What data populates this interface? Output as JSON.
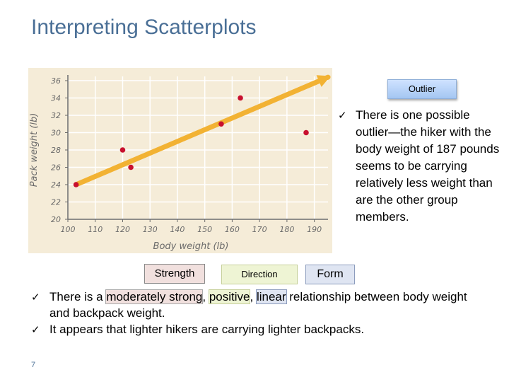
{
  "slide": {
    "title": "Interpreting Scatterplots",
    "page_number": "7"
  },
  "chart_data": {
    "type": "scatter",
    "xlabel": "Body weight (lb)",
    "ylabel": "Pack weight (lb)",
    "xlim": [
      100,
      195
    ],
    "ylim": [
      20,
      36
    ],
    "x_ticks": [
      100,
      110,
      120,
      130,
      140,
      150,
      160,
      170,
      180,
      190
    ],
    "y_ticks": [
      20,
      22,
      24,
      26,
      28,
      30,
      32,
      34,
      36
    ],
    "points": [
      {
        "x": 103,
        "y": 24
      },
      {
        "x": 120,
        "y": 28
      },
      {
        "x": 123,
        "y": 26
      },
      {
        "x": 156,
        "y": 31
      },
      {
        "x": 163,
        "y": 34
      },
      {
        "x": 187,
        "y": 30
      }
    ],
    "trend_line": {
      "x": [
        103,
        195
      ],
      "y": [
        24,
        36.4
      ]
    },
    "colors": {
      "points": "#c8102e",
      "trend_line": "#f2b233",
      "background": "#f5ecd8",
      "grid": "#ffffff"
    },
    "grid": true
  },
  "outlier_tag": "Outlier",
  "outlier_note": "There is one possible outlier—the hiker with the body weight of 187 pounds seems to be carrying relatively less weight than are the other group members.",
  "tags": {
    "strength": "Strength",
    "direction": "Direction",
    "form": "Form"
  },
  "bullets": {
    "b1_pre": "There is a ",
    "b1_strength": "moderately strong",
    "b1_sep1": ", ",
    "b1_direction": "positive",
    "b1_sep2": ", ",
    "b1_form": "linear",
    "b1_post": " relationship between body weight and backpack weight.",
    "b2": "It appears that lighter hikers are carrying lighter backpacks."
  },
  "check_glyph": "✓"
}
